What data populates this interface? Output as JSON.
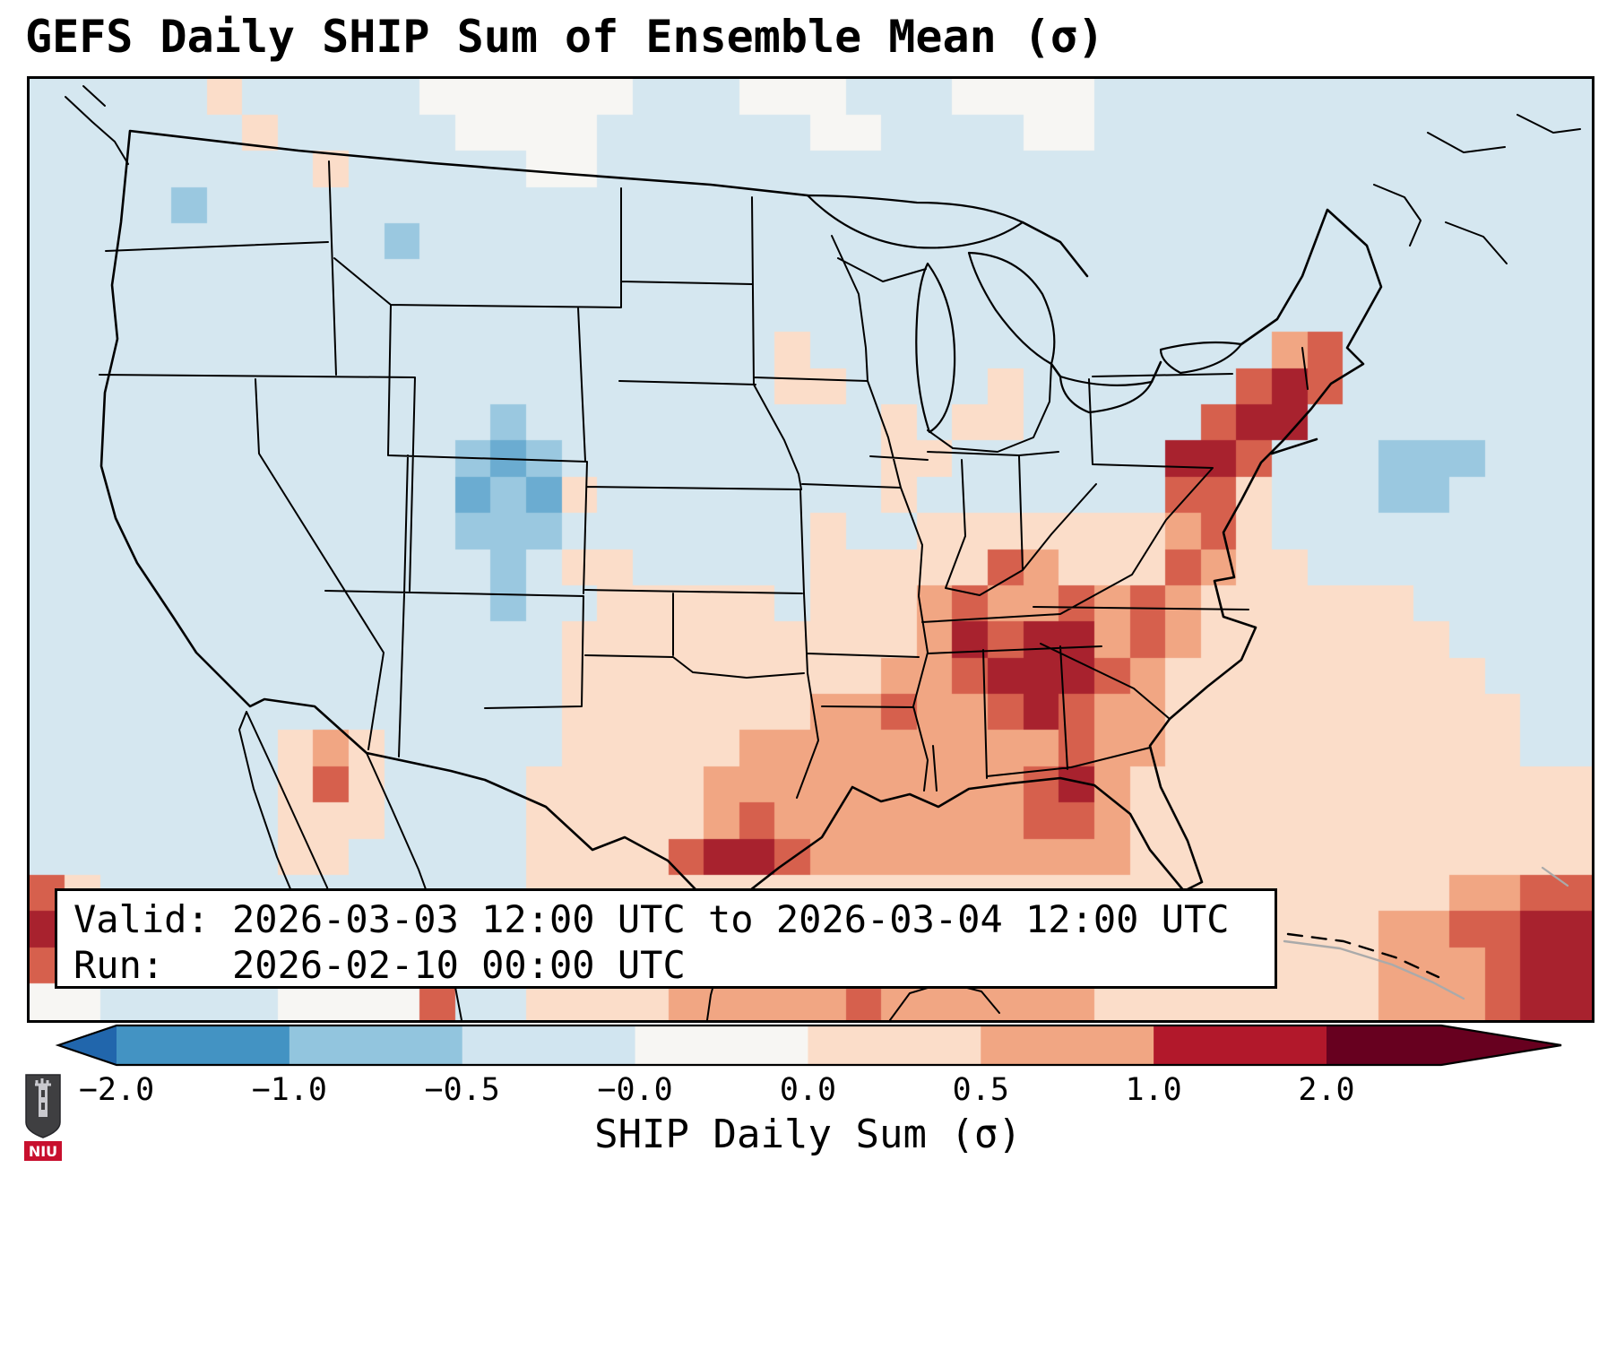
{
  "title": "GEFS Daily SHIP Sum of Ensemble Mean (σ)",
  "info_box": {
    "valid_line": "Valid: 2026-03-03 12:00 UTC to 2026-03-04 12:00 UTC",
    "run_line": "Run:   2026-02-10 00:00 UTC"
  },
  "logo": {
    "text": "NIU"
  },
  "chart_data": {
    "type": "heatmap",
    "title": "GEFS Daily SHIP Sum of Ensemble Mean (σ)",
    "description": "Gridded forecast map of SHIP daily sum anomaly (sigma) over CONUS; values estimated from color grid",
    "valid": "2026-03-03 12:00 UTC to 2026-03-04 12:00 UTC",
    "run": "2026-02-10 00:00 UTC",
    "colorbar": {
      "label": "SHIP Daily Sum (σ)",
      "ticks": [
        "−2.0",
        "−1.0",
        "−0.5",
        "−0.0",
        "0.0",
        "0.5",
        "1.0",
        "2.0"
      ],
      "tick_values": [
        -2.0,
        -1.0,
        -0.5,
        -0.0,
        0.0,
        0.5,
        1.0,
        2.0
      ],
      "segment_colors": [
        "#4393c3",
        "#92c5de",
        "#d1e5f0",
        "#f7f6f3",
        "#fbddc9",
        "#f1a683",
        "#b2182b"
      ],
      "extend_left_color": "#2166ac",
      "extend_right_color": "#67001f",
      "orientation": "horizontal"
    },
    "palette": {
      "a": "#2166ac",
      "b": "#6bacd1",
      "c": "#9ac8e0",
      "d": "#d5e7f0",
      "e": "#f7f6f3",
      "f": "#fbddc9",
      "g": "#f1a683",
      "h": "#d6604d",
      "i": "#a8222e"
    },
    "palette_values": {
      "a": -2.0,
      "b": -1.0,
      "c": -0.5,
      "d": -0.2,
      "e": 0.0,
      "f": 0.3,
      "g": 0.6,
      "h": 1.0,
      "i": 1.8
    },
    "grid": {
      "cols": 44,
      "rows": 26,
      "cells": [
        "dddddfdddddeeeeeedddeeedddeeeedddddddddddddd",
        "ddddddfdddddeeeeddddddeeddddeedddddddddddddd",
        "ddddddddfdddddeedddddddddddddddddddddddddddd",
        "ddddcddddddddddddddddddddddddddddddddddddddd",
        "ddddddddddcddddddddddddddddddddddddddddddddd",
        "dddddddddddddddddddddddddddddddddddddddddddd",
        "dddddddddddddddddddddddddddddddddddddddddddd",
        "dddddddddddddddddddddfdddddddddddddghddddddd",
        "dddddddddddddddddddddffddddfddddddhihddddddd",
        "dddddddddddddcddddddddddfdffdddddhiidddddddd",
        "ddddddddddddcbcdddddddddffddddddiihdddcccddd",
        "ddddddddddddbcbfddddddddfdddddddhhfdddccdddd",
        "ddddddddddddcccdddddddfddfffffffghfddddddddd",
        "dddddddddddddcdffdddddfffffhgfffhgffdddddddd",
        "dddddddddddddcddfffffdfffghgghghgffffffddddd",
        "dddddddddddddddffffffffffgihiighgfffffffdddd",
        "dddddddddddddddfffffffffgghiiihgfffffffffddd",
        "dddddddddddddddfffffffgghgghihggffffffffffdd",
        "dddddddfgfdddddfffffggggggggghggffffffffffdd",
        "dddddddfhfddddfffffggggggggghigfffffffffffff",
        "dddddddfffddddfffffghggggggghhgfffffffffffff",
        "dddddddffdddddffffhiihgggggggggfffffffffffff",
        "hfddddddddddddffffffffffffffffffffffffffgghh",
        "igdddddfffffffgggggggggggggggggggggfffgghhii",
        "hgdddddeeeedddffffggghggggggggffffffffggghii",
        "eedddddeeeehddffffggggghggggggffffffffggghii"
      ]
    }
  }
}
